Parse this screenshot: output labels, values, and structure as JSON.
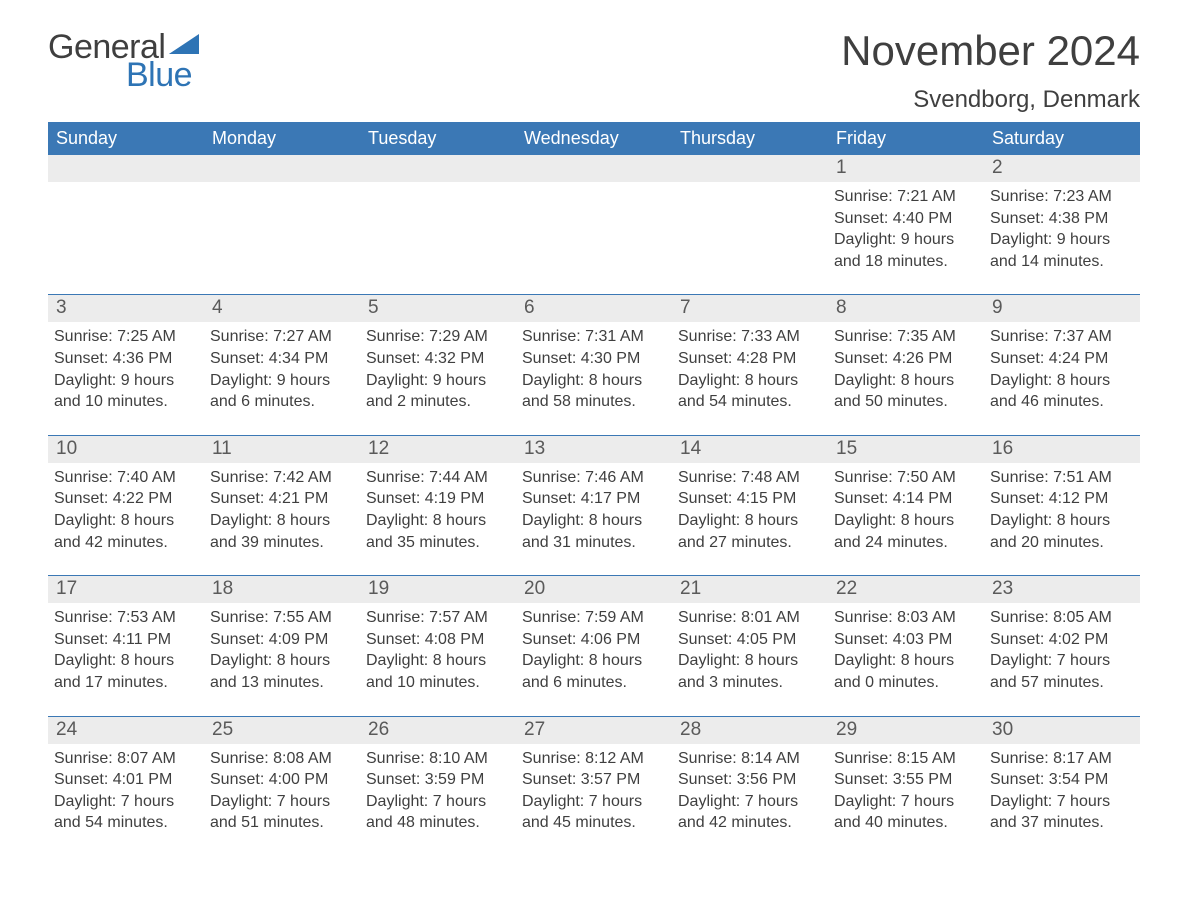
{
  "logo": {
    "general": "General",
    "blue": "Blue",
    "flag_color": "#2e74b5"
  },
  "title": "November 2024",
  "location": "Svendborg, Denmark",
  "colors": {
    "header_bg": "#3b78b5",
    "header_text": "#ffffff",
    "daynum_bg": "#ececec",
    "text": "#3f3f3f",
    "rule": "#3b78b5",
    "logo_blue": "#2e74b5"
  },
  "weekdays": [
    "Sunday",
    "Monday",
    "Tuesday",
    "Wednesday",
    "Thursday",
    "Friday",
    "Saturday"
  ],
  "weeks": [
    [
      null,
      null,
      null,
      null,
      null,
      {
        "n": "1",
        "sunrise": "7:21 AM",
        "sunset": "4:40 PM",
        "daylight": "9 hours and 18 minutes."
      },
      {
        "n": "2",
        "sunrise": "7:23 AM",
        "sunset": "4:38 PM",
        "daylight": "9 hours and 14 minutes."
      }
    ],
    [
      {
        "n": "3",
        "sunrise": "7:25 AM",
        "sunset": "4:36 PM",
        "daylight": "9 hours and 10 minutes."
      },
      {
        "n": "4",
        "sunrise": "7:27 AM",
        "sunset": "4:34 PM",
        "daylight": "9 hours and 6 minutes."
      },
      {
        "n": "5",
        "sunrise": "7:29 AM",
        "sunset": "4:32 PM",
        "daylight": "9 hours and 2 minutes."
      },
      {
        "n": "6",
        "sunrise": "7:31 AM",
        "sunset": "4:30 PM",
        "daylight": "8 hours and 58 minutes."
      },
      {
        "n": "7",
        "sunrise": "7:33 AM",
        "sunset": "4:28 PM",
        "daylight": "8 hours and 54 minutes."
      },
      {
        "n": "8",
        "sunrise": "7:35 AM",
        "sunset": "4:26 PM",
        "daylight": "8 hours and 50 minutes."
      },
      {
        "n": "9",
        "sunrise": "7:37 AM",
        "sunset": "4:24 PM",
        "daylight": "8 hours and 46 minutes."
      }
    ],
    [
      {
        "n": "10",
        "sunrise": "7:40 AM",
        "sunset": "4:22 PM",
        "daylight": "8 hours and 42 minutes."
      },
      {
        "n": "11",
        "sunrise": "7:42 AM",
        "sunset": "4:21 PM",
        "daylight": "8 hours and 39 minutes."
      },
      {
        "n": "12",
        "sunrise": "7:44 AM",
        "sunset": "4:19 PM",
        "daylight": "8 hours and 35 minutes."
      },
      {
        "n": "13",
        "sunrise": "7:46 AM",
        "sunset": "4:17 PM",
        "daylight": "8 hours and 31 minutes."
      },
      {
        "n": "14",
        "sunrise": "7:48 AM",
        "sunset": "4:15 PM",
        "daylight": "8 hours and 27 minutes."
      },
      {
        "n": "15",
        "sunrise": "7:50 AM",
        "sunset": "4:14 PM",
        "daylight": "8 hours and 24 minutes."
      },
      {
        "n": "16",
        "sunrise": "7:51 AM",
        "sunset": "4:12 PM",
        "daylight": "8 hours and 20 minutes."
      }
    ],
    [
      {
        "n": "17",
        "sunrise": "7:53 AM",
        "sunset": "4:11 PM",
        "daylight": "8 hours and 17 minutes."
      },
      {
        "n": "18",
        "sunrise": "7:55 AM",
        "sunset": "4:09 PM",
        "daylight": "8 hours and 13 minutes."
      },
      {
        "n": "19",
        "sunrise": "7:57 AM",
        "sunset": "4:08 PM",
        "daylight": "8 hours and 10 minutes."
      },
      {
        "n": "20",
        "sunrise": "7:59 AM",
        "sunset": "4:06 PM",
        "daylight": "8 hours and 6 minutes."
      },
      {
        "n": "21",
        "sunrise": "8:01 AM",
        "sunset": "4:05 PM",
        "daylight": "8 hours and 3 minutes."
      },
      {
        "n": "22",
        "sunrise": "8:03 AM",
        "sunset": "4:03 PM",
        "daylight": "8 hours and 0 minutes."
      },
      {
        "n": "23",
        "sunrise": "8:05 AM",
        "sunset": "4:02 PM",
        "daylight": "7 hours and 57 minutes."
      }
    ],
    [
      {
        "n": "24",
        "sunrise": "8:07 AM",
        "sunset": "4:01 PM",
        "daylight": "7 hours and 54 minutes."
      },
      {
        "n": "25",
        "sunrise": "8:08 AM",
        "sunset": "4:00 PM",
        "daylight": "7 hours and 51 minutes."
      },
      {
        "n": "26",
        "sunrise": "8:10 AM",
        "sunset": "3:59 PM",
        "daylight": "7 hours and 48 minutes."
      },
      {
        "n": "27",
        "sunrise": "8:12 AM",
        "sunset": "3:57 PM",
        "daylight": "7 hours and 45 minutes."
      },
      {
        "n": "28",
        "sunrise": "8:14 AM",
        "sunset": "3:56 PM",
        "daylight": "7 hours and 42 minutes."
      },
      {
        "n": "29",
        "sunrise": "8:15 AM",
        "sunset": "3:55 PM",
        "daylight": "7 hours and 40 minutes."
      },
      {
        "n": "30",
        "sunrise": "8:17 AM",
        "sunset": "3:54 PM",
        "daylight": "7 hours and 37 minutes."
      }
    ]
  ],
  "labels": {
    "sunrise": "Sunrise: ",
    "sunset": "Sunset: ",
    "daylight": "Daylight: "
  }
}
